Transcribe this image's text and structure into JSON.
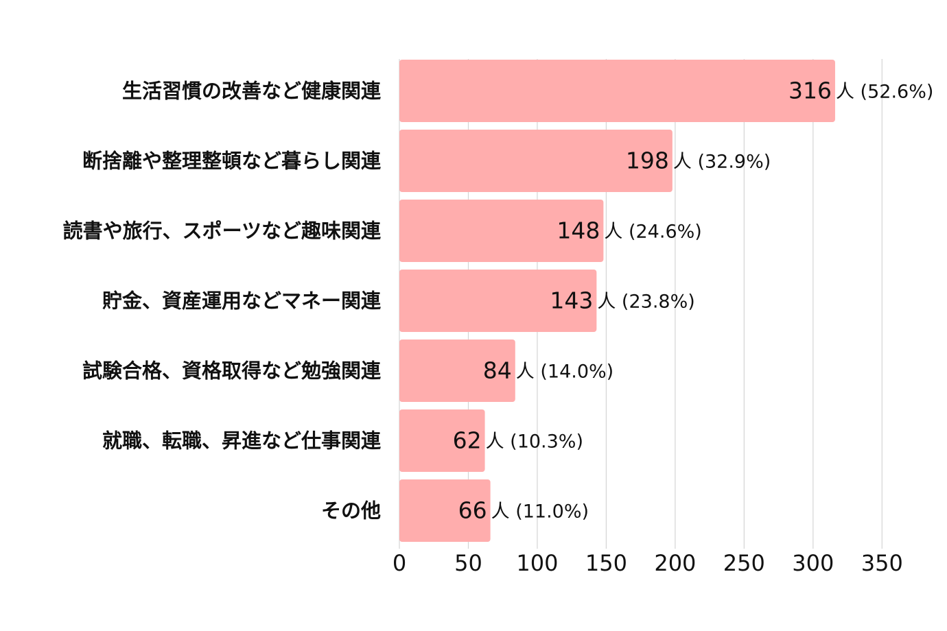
{
  "chart_data": {
    "type": "bar",
    "orientation": "horizontal",
    "categories": [
      "生活習慣の改善など健康関連",
      "断捨離や整理整頓など暮らし関連",
      "読書や旅行、スポーツなど趣味関連",
      "貯金、資産運用などマネー関連",
      "試験合格、資格取得など勉強関連",
      "就職、転職、昇進など仕事関連",
      "その他"
    ],
    "values": [
      316,
      198,
      148,
      143,
      84,
      62,
      66
    ],
    "value_labels": [
      {
        "num": "316",
        "unit": "人 (52.6%)"
      },
      {
        "num": "198",
        "unit": "人 (32.9%)"
      },
      {
        "num": "148",
        "unit": "人 (24.6%)"
      },
      {
        "num": "143",
        "unit": "人 (23.8%)"
      },
      {
        "num": "84",
        "unit": "人 (14.0%)"
      },
      {
        "num": "62",
        "unit": "人 (10.3%)"
      },
      {
        "num": "66",
        "unit": "人 (11.0%)"
      }
    ],
    "x_ticks": [
      "0",
      "50",
      "100",
      "150",
      "200",
      "250",
      "300",
      "350"
    ],
    "xlim": [
      0,
      350
    ],
    "grid": true,
    "bar_color": "#ffadad",
    "grid_color": "#d4d4d4",
    "title": "",
    "xlabel": "",
    "ylabel": ""
  }
}
